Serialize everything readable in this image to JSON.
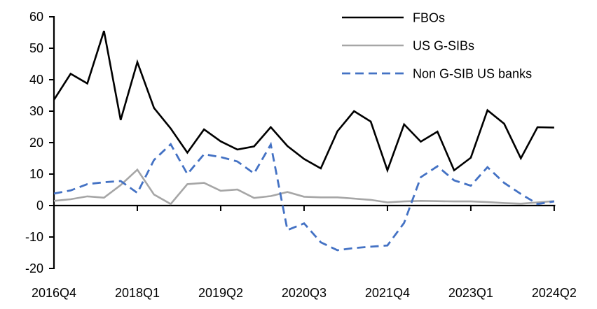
{
  "chart_data": {
    "type": "line",
    "title": "",
    "xlabel": "",
    "ylabel": "",
    "grid": false,
    "legend_position": "top-right",
    "ylim": [
      -20,
      60
    ],
    "ytick_step": 10,
    "ytick_labels": [
      "60",
      "50",
      "40",
      "30",
      "20",
      "10",
      "0",
      "-10",
      "-20"
    ],
    "x_categories": [
      "2016Q4",
      "2017Q1",
      "2017Q2",
      "2017Q3",
      "2017Q4",
      "2018Q1",
      "2018Q2",
      "2018Q3",
      "2018Q4",
      "2019Q1",
      "2019Q2",
      "2019Q3",
      "2019Q4",
      "2020Q1",
      "2020Q2",
      "2020Q3",
      "2020Q4",
      "2021Q1",
      "2021Q2",
      "2021Q3",
      "2021Q4",
      "2022Q1",
      "2022Q2",
      "2022Q3",
      "2022Q4",
      "2023Q1",
      "2023Q2",
      "2023Q3",
      "2023Q4",
      "2024Q1",
      "2024Q2"
    ],
    "xtick_label_indices": [
      0,
      5,
      10,
      15,
      20,
      25,
      30
    ],
    "xtick_labels": [
      "2016Q4",
      "2018Q1",
      "2019Q2",
      "2020Q3",
      "2021Q4",
      "2023Q1",
      "2024Q2"
    ],
    "series": [
      {
        "name": "FBOs",
        "color": "#000000",
        "dash": null,
        "width": 2.6,
        "values": [
          33.6,
          41.9,
          38.8,
          55.5,
          27.2,
          45.6,
          31.0,
          24.5,
          16.8,
          24.2,
          20.4,
          17.8,
          18.8,
          24.9,
          18.9,
          14.8,
          11.8,
          23.6,
          30.0,
          26.7,
          11.2,
          25.8,
          20.3,
          23.5,
          11.2,
          15.2,
          30.3,
          26.0,
          15.0,
          24.9,
          24.8
        ]
      },
      {
        "name": "US G-SIBs",
        "color": "#a6a6a6",
        "dash": null,
        "width": 2.6,
        "values": [
          1.5,
          2.0,
          2.9,
          2.5,
          6.5,
          11.4,
          3.5,
          0.5,
          6.8,
          7.2,
          4.7,
          5.1,
          2.4,
          3.0,
          4.3,
          2.8,
          2.6,
          2.6,
          2.2,
          1.8,
          1.0,
          1.3,
          1.5,
          1.4,
          1.3,
          1.3,
          1.1,
          0.8,
          0.6,
          1.0,
          1.4
        ]
      },
      {
        "name": "Non G-SIB US banks",
        "color": "#4472c4",
        "dash": [
          12,
          7
        ],
        "width": 2.8,
        "values": [
          3.8,
          4.8,
          6.8,
          7.4,
          7.8,
          4.0,
          14.5,
          19.5,
          10.0,
          16.3,
          15.4,
          14.0,
          10.2,
          19.4,
          -7.8,
          -5.7,
          -11.7,
          -14.2,
          -13.5,
          -13.1,
          -12.7,
          -5.5,
          9.0,
          12.5,
          8.0,
          6.3,
          12.2,
          7.2,
          3.7,
          0.5,
          1.3
        ]
      }
    ],
    "axis_color": "#000000"
  }
}
